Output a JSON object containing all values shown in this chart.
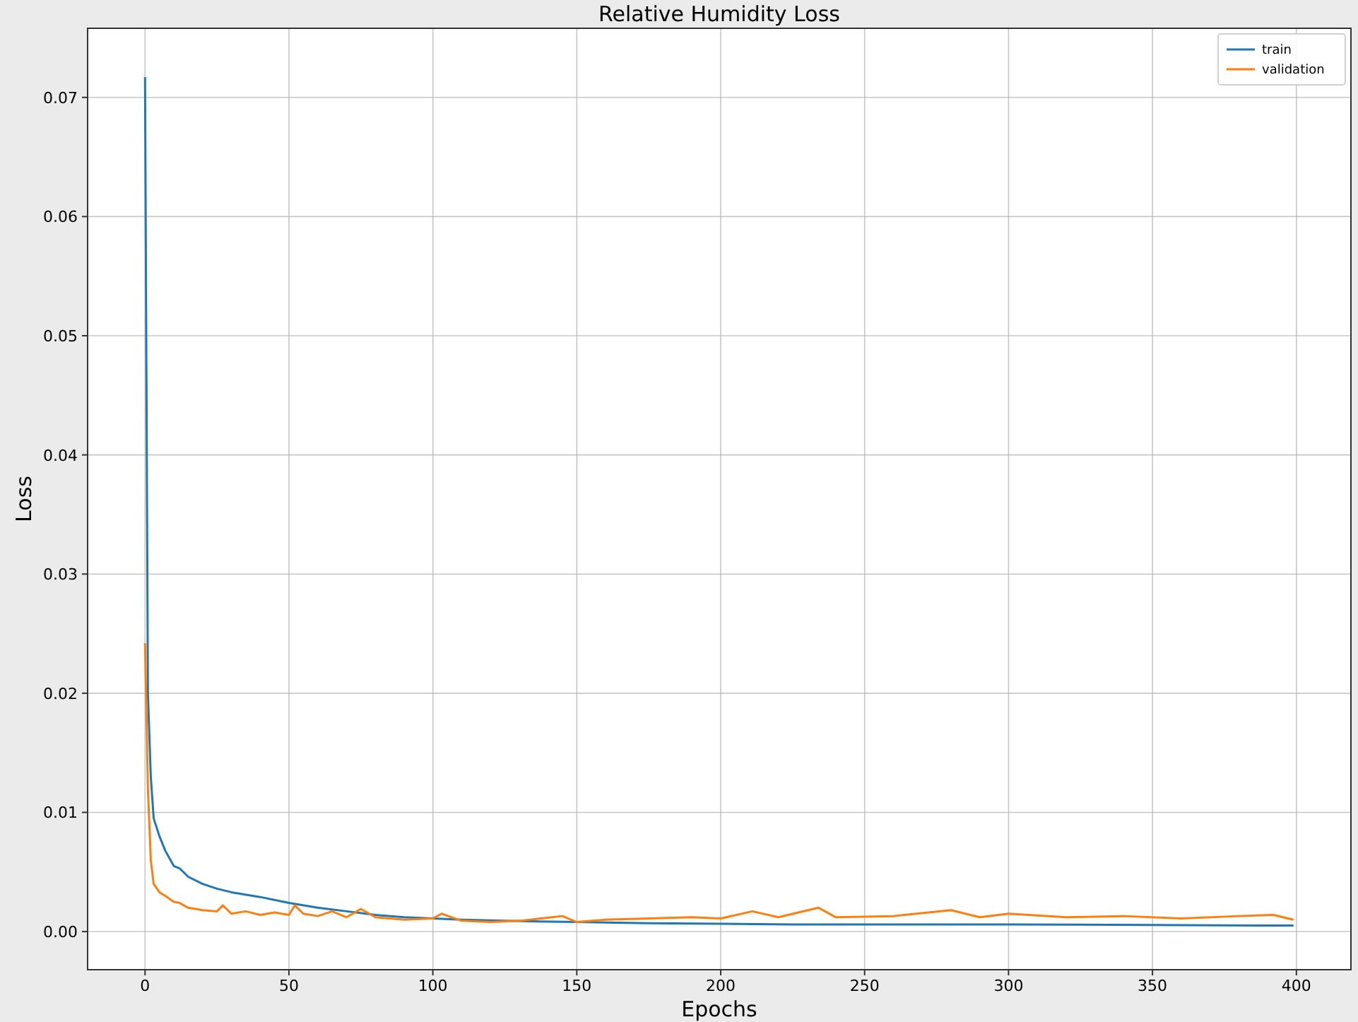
{
  "chart_data": {
    "type": "line",
    "title": "Relative Humidity Loss",
    "xlabel": "Epochs",
    "ylabel": "Loss",
    "xlim": [
      -19.95,
      418.95
    ],
    "ylim": [
      -0.0032,
      0.0758
    ],
    "xticks": [
      0,
      50,
      100,
      150,
      200,
      250,
      300,
      350,
      400
    ],
    "yticks": [
      {
        "value": 0,
        "label": "0.00"
      },
      {
        "value": 0.01,
        "label": "0.01"
      },
      {
        "value": 0.02,
        "label": "0.02"
      },
      {
        "value": 0.03,
        "label": "0.03"
      },
      {
        "value": 0.04,
        "label": "0.04"
      },
      {
        "value": 0.05,
        "label": "0.05"
      },
      {
        "value": 0.06,
        "label": "0.06"
      },
      {
        "value": 0.07,
        "label": "0.07"
      }
    ],
    "grid": true,
    "legend": "top right",
    "marker": "none",
    "line_style": "solid",
    "series": [
      {
        "name": "train",
        "color": "#1f77b4",
        "x": [
          0,
          1,
          2,
          3,
          5,
          7,
          10,
          12,
          15,
          20,
          25,
          30,
          40,
          50,
          60,
          70,
          80,
          90,
          100,
          110,
          125,
          150,
          175,
          200,
          225,
          250,
          300,
          350,
          399
        ],
        "values": [
          0.0717,
          0.02,
          0.013,
          0.0095,
          0.008,
          0.0068,
          0.0055,
          0.0053,
          0.0046,
          0.004,
          0.0036,
          0.0033,
          0.0029,
          0.0024,
          0.002,
          0.0017,
          0.0014,
          0.0012,
          0.0011,
          0.001,
          0.0009,
          0.0008,
          0.0007,
          0.00065,
          0.0006,
          0.0006,
          0.0006,
          0.00055,
          0.0005
        ]
      },
      {
        "name": "validation",
        "color": "#ff7f0e",
        "x": [
          0,
          1,
          2,
          3,
          5,
          7,
          10,
          12,
          15,
          20,
          25,
          27,
          30,
          35,
          40,
          45,
          50,
          52,
          55,
          60,
          65,
          70,
          75,
          80,
          90,
          100,
          103,
          110,
          120,
          130,
          145,
          150,
          160,
          175,
          190,
          200,
          211,
          220,
          234,
          240,
          260,
          280,
          290,
          300,
          320,
          340,
          360,
          380,
          392,
          399
        ],
        "values": [
          0.0242,
          0.012,
          0.006,
          0.004,
          0.0033,
          0.003,
          0.0025,
          0.0024,
          0.002,
          0.0018,
          0.0017,
          0.0022,
          0.0015,
          0.0017,
          0.0014,
          0.0016,
          0.0014,
          0.0022,
          0.0015,
          0.0013,
          0.0017,
          0.0012,
          0.0019,
          0.0012,
          0.001,
          0.0011,
          0.0015,
          0.0009,
          0.0008,
          0.0009,
          0.0013,
          0.0008,
          0.001,
          0.0011,
          0.0012,
          0.0011,
          0.0017,
          0.0012,
          0.002,
          0.0012,
          0.0013,
          0.0018,
          0.0012,
          0.0015,
          0.0012,
          0.0013,
          0.0011,
          0.0013,
          0.0014,
          0.001
        ]
      }
    ]
  }
}
